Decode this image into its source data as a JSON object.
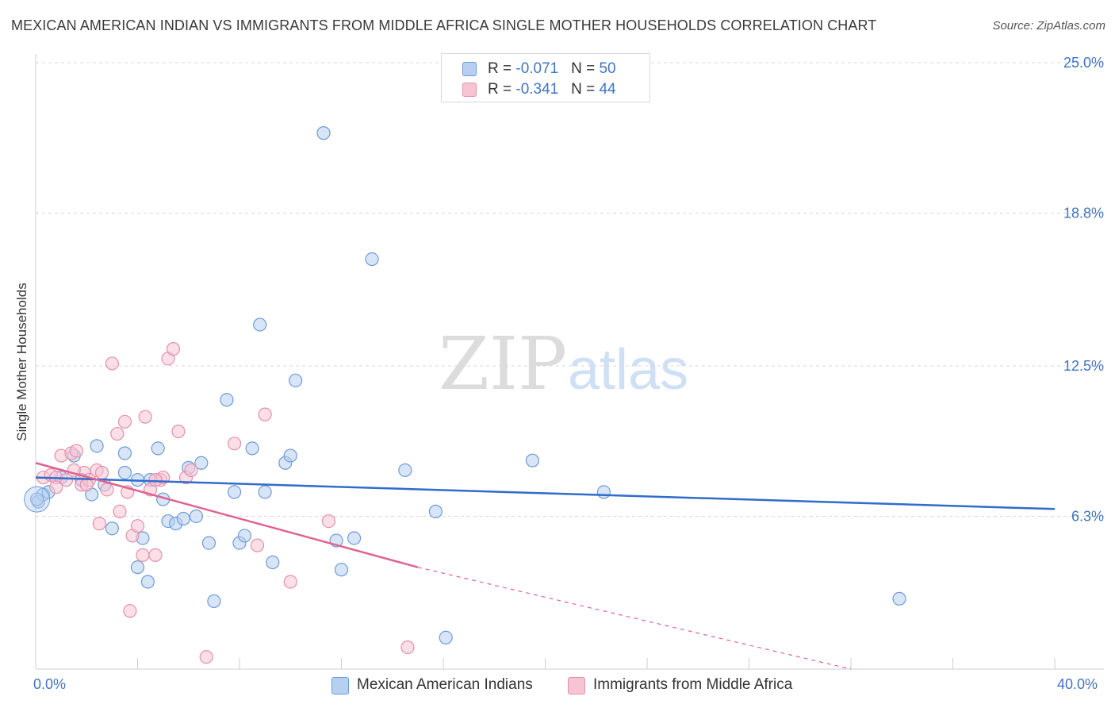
{
  "title": "MEXICAN AMERICAN INDIAN VS IMMIGRANTS FROM MIDDLE AFRICA SINGLE MOTHER HOUSEHOLDS CORRELATION CHART",
  "source": "Source: ZipAtlas.com",
  "watermark": {
    "zip": "ZIP",
    "atlas": "atlas"
  },
  "legend_top": {
    "rows": [
      {
        "r_label": "R = ",
        "r_value": "-0.071",
        "n_label": "N = ",
        "n_value": "50"
      },
      {
        "r_label": "R = ",
        "r_value": "-0.341",
        "n_label": "N = ",
        "n_value": "44"
      }
    ]
  },
  "legend_bottom": {
    "series1": "Mexican American Indians",
    "series2": "Immigrants from Middle Africa"
  },
  "colors": {
    "blue_fill": "#b7d0f1",
    "blue_stroke": "#6d9bd9",
    "blue_line": "#2f6ccc",
    "pink_fill": "#f7c4d4",
    "pink_stroke": "#e58fab",
    "pink_line": "#e0628e",
    "axis_text": "#3f74c5",
    "grid": "#d9d9d9"
  },
  "chart_data": {
    "type": "scatter",
    "title": "MEXICAN AMERICAN INDIAN VS IMMIGRANTS FROM MIDDLE AFRICA SINGLE MOTHER HOUSEHOLDS CORRELATION CHART",
    "xlabel": "",
    "ylabel": "Single Mother Households",
    "xlim": [
      0,
      40
    ],
    "ylim": [
      0,
      25.0
    ],
    "x_tick_labels": [
      "0.0%",
      "40.0%"
    ],
    "y_ticks": [
      {
        "value": 6.3,
        "label": "6.3%"
      },
      {
        "value": 12.5,
        "label": "12.5%"
      },
      {
        "value": 18.8,
        "label": "18.8%"
      },
      {
        "value": 25.0,
        "label": "25.0%"
      }
    ],
    "grid": true,
    "series": [
      {
        "name": "Mexican American Indians",
        "color": "#6d9bd9",
        "points": [
          [
            0.1,
            6.9
          ],
          [
            0.3,
            7.2
          ],
          [
            0.5,
            7.3
          ],
          [
            1.0,
            7.9
          ],
          [
            1.5,
            8.8
          ],
          [
            1.8,
            7.8
          ],
          [
            2.2,
            7.2
          ],
          [
            2.4,
            9.2
          ],
          [
            2.7,
            7.6
          ],
          [
            3.0,
            5.8
          ],
          [
            3.5,
            8.1
          ],
          [
            3.5,
            8.9
          ],
          [
            4.0,
            7.8
          ],
          [
            4.0,
            4.2
          ],
          [
            4.2,
            5.4
          ],
          [
            4.4,
            3.6
          ],
          [
            4.5,
            7.8
          ],
          [
            4.8,
            9.1
          ],
          [
            5.0,
            7.0
          ],
          [
            5.2,
            6.1
          ],
          [
            5.5,
            6.0
          ],
          [
            5.8,
            6.2
          ],
          [
            6.0,
            8.3
          ],
          [
            6.3,
            6.3
          ],
          [
            6.5,
            8.5
          ],
          [
            6.8,
            5.2
          ],
          [
            7.0,
            2.8
          ],
          [
            7.5,
            11.1
          ],
          [
            7.8,
            7.3
          ],
          [
            8.0,
            5.2
          ],
          [
            8.2,
            5.5
          ],
          [
            8.5,
            9.1
          ],
          [
            8.8,
            14.2
          ],
          [
            9.0,
            7.3
          ],
          [
            9.3,
            4.4
          ],
          [
            9.8,
            8.5
          ],
          [
            10.0,
            8.8
          ],
          [
            10.2,
            11.9
          ],
          [
            11.3,
            22.1
          ],
          [
            11.8,
            5.3
          ],
          [
            12.0,
            4.1
          ],
          [
            12.5,
            5.4
          ],
          [
            13.2,
            16.9
          ],
          [
            14.5,
            8.2
          ],
          [
            15.7,
            6.5
          ],
          [
            16.1,
            1.3
          ],
          [
            19.5,
            8.6
          ],
          [
            22.3,
            7.3
          ],
          [
            33.9,
            2.9
          ],
          [
            0.05,
            7.0
          ]
        ],
        "trend": {
          "x": [
            0,
            40
          ],
          "y": [
            7.9,
            6.6
          ]
        }
      },
      {
        "name": "Immigrants from Middle Africa",
        "color": "#e58fab",
        "points": [
          [
            0.3,
            7.9
          ],
          [
            0.6,
            8.0
          ],
          [
            0.8,
            7.9
          ],
          [
            1.0,
            8.8
          ],
          [
            1.2,
            7.8
          ],
          [
            1.4,
            8.9
          ],
          [
            1.6,
            9.0
          ],
          [
            1.8,
            7.6
          ],
          [
            1.9,
            8.1
          ],
          [
            2.1,
            7.8
          ],
          [
            2.4,
            8.2
          ],
          [
            2.6,
            8.1
          ],
          [
            2.8,
            7.4
          ],
          [
            3.0,
            12.6
          ],
          [
            3.2,
            9.7
          ],
          [
            3.3,
            6.5
          ],
          [
            3.5,
            10.2
          ],
          [
            3.6,
            7.3
          ],
          [
            3.7,
            2.4
          ],
          [
            3.8,
            5.5
          ],
          [
            4.0,
            5.9
          ],
          [
            4.2,
            4.7
          ],
          [
            4.3,
            10.4
          ],
          [
            4.5,
            7.4
          ],
          [
            4.7,
            4.7
          ],
          [
            4.9,
            7.8
          ],
          [
            5.0,
            7.9
          ],
          [
            5.2,
            12.8
          ],
          [
            5.4,
            13.2
          ],
          [
            5.6,
            9.8
          ],
          [
            5.9,
            7.9
          ],
          [
            6.1,
            8.2
          ],
          [
            6.7,
            0.5
          ],
          [
            7.8,
            9.3
          ],
          [
            8.7,
            5.1
          ],
          [
            9.0,
            10.5
          ],
          [
            10.0,
            3.6
          ],
          [
            11.5,
            6.1
          ],
          [
            14.6,
            0.9
          ],
          [
            0.8,
            7.5
          ],
          [
            1.5,
            8.2
          ],
          [
            2.0,
            7.6
          ],
          [
            2.5,
            6.0
          ],
          [
            4.7,
            7.8
          ]
        ],
        "trend": {
          "x": [
            0,
            15
          ],
          "y": [
            8.5,
            4.2
          ]
        },
        "trend_extension": {
          "x": [
            15,
            32
          ],
          "y": [
            4.2,
            0.0
          ]
        }
      }
    ]
  }
}
